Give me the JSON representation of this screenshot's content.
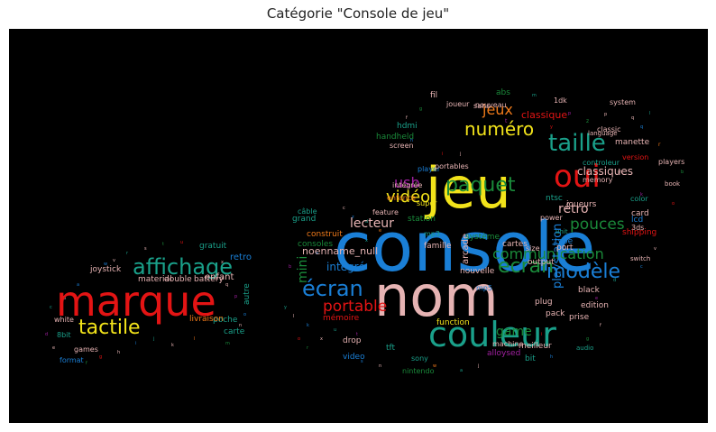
{
  "title": "Catégorie \"Console de jeu\"",
  "colors": {
    "background": "#000000",
    "title_text": "#222222"
  },
  "words": [
    {
      "text": "console",
      "color": "#1a7fd6"
    },
    {
      "text": "jeu",
      "color": "#f2e31a"
    },
    {
      "text": "nom",
      "color": "#e6b3b3"
    },
    {
      "text": "marque",
      "color": "#e31414"
    },
    {
      "text": "couleur",
      "color": "#1aa08a"
    },
    {
      "text": "oui",
      "color": "#e31414"
    },
    {
      "text": "affichage",
      "color": "#1aa08a"
    },
    {
      "text": "tactile",
      "color": "#f2e31a"
    },
    {
      "text": "taille",
      "color": "#1aa08a"
    },
    {
      "text": "écran",
      "color": "#1a7fd6"
    },
    {
      "text": "paquet",
      "color": "#1a8a3a"
    },
    {
      "text": "modèle",
      "color": "#1a7fd6"
    },
    {
      "text": "numéro",
      "color": "#f2e31a"
    },
    {
      "text": "vidéo",
      "color": "#f2e31a"
    },
    {
      "text": "ecran",
      "color": "#1a8a3a"
    },
    {
      "text": "communication",
      "color": "#1a8a3a"
    },
    {
      "text": "portable",
      "color": "#e31414"
    },
    {
      "text": "jeux",
      "color": "#f07a1a"
    },
    {
      "text": "pouces",
      "color": "#1a8a3a"
    },
    {
      "text": "usb",
      "color": "#a020a0"
    },
    {
      "text": "lecteur",
      "color": "#e6b3b3"
    },
    {
      "text": "rétro",
      "color": "#e6b3b3"
    },
    {
      "text": "mini",
      "color": "#1a8a3a"
    },
    {
      "text": "intégré",
      "color": "#1a7fd6"
    },
    {
      "text": "classiques",
      "color": "#e6b3b3"
    },
    {
      "text": "game",
      "color": "#1a8a3a"
    },
    {
      "text": "playstation",
      "color": "#1a7fd6"
    },
    {
      "text": "noenname_null",
      "color": "#e6b3b3"
    },
    {
      "text": "classique",
      "color": "#e31414"
    },
    {
      "text": "joystick",
      "color": "#e6b3b3"
    },
    {
      "text": "enfant",
      "color": "#e6b3b3"
    },
    {
      "text": "retro",
      "color": "#1a7fd6"
    },
    {
      "text": "gratuit",
      "color": "#1aa08a"
    },
    {
      "text": "poche",
      "color": "#1aa08a"
    },
    {
      "text": "carte",
      "color": "#1aa08a"
    },
    {
      "text": "autre",
      "color": "#1aa08a"
    },
    {
      "text": "double",
      "color": "#e6b3b3"
    },
    {
      "text": "battery",
      "color": "#e6b3b3"
    },
    {
      "text": "material",
      "color": "#e6b3b3"
    },
    {
      "text": "livraison",
      "color": "#f07a1a"
    },
    {
      "text": "white",
      "color": "#e6b3b3"
    },
    {
      "text": "8bit",
      "color": "#1aa08a"
    },
    {
      "text": "format",
      "color": "#1a7fd6"
    },
    {
      "text": "games",
      "color": "#e6b3b3"
    },
    {
      "text": "consoles",
      "color": "#1a8a3a"
    },
    {
      "text": "construit",
      "color": "#f07a1a"
    },
    {
      "text": "grand",
      "color": "#1aa08a"
    },
    {
      "text": "mémoire",
      "color": "#e31414"
    },
    {
      "text": "famille",
      "color": "#e6b3b3"
    },
    {
      "text": "arcade",
      "color": "#e6b3b3"
    },
    {
      "text": "cartes",
      "color": "#e6b3b3"
    },
    {
      "text": "nouvelle",
      "color": "#e6b3b3"
    },
    {
      "text": "machine",
      "color": "#e6b3b3"
    },
    {
      "text": "alloysed",
      "color": "#a020a0"
    },
    {
      "text": "bit",
      "color": "#1aa08a"
    },
    {
      "text": "meilleur",
      "color": "#e6b3b3"
    },
    {
      "text": "edition",
      "color": "#e6b3b3"
    },
    {
      "text": "prise",
      "color": "#e6b3b3"
    },
    {
      "text": "shipping",
      "color": "#e31414"
    },
    {
      "text": "card",
      "color": "#e6b3b3"
    },
    {
      "text": "lcd",
      "color": "#1a7fd6"
    },
    {
      "text": "3ds",
      "color": "#e6b3b3"
    },
    {
      "text": "color",
      "color": "#1aa08a"
    },
    {
      "text": "manette",
      "color": "#e6b3b3"
    },
    {
      "text": "système",
      "color": "#1a8a3a"
    },
    {
      "text": "joueurs",
      "color": "#e6b3b3"
    },
    {
      "text": "ntsc",
      "color": "#1aa08a"
    },
    {
      "text": "super",
      "color": "#f2e31a"
    },
    {
      "text": "station",
      "color": "#1a8a3a"
    },
    {
      "text": "mp3",
      "color": "#1aa08a"
    },
    {
      "text": "mp5",
      "color": "#1a7fd6"
    },
    {
      "text": "tft",
      "color": "#1aa08a"
    },
    {
      "text": "sony",
      "color": "#1aa08a"
    },
    {
      "text": "nintendo",
      "color": "#1a8a3a"
    },
    {
      "text": "drop",
      "color": "#e6b3b3"
    },
    {
      "text": "video",
      "color": "#1a7fd6"
    },
    {
      "text": "plug",
      "color": "#e6b3b3"
    },
    {
      "text": "pack",
      "color": "#e6b3b3"
    },
    {
      "text": "port",
      "color": "#e6b3b3"
    },
    {
      "text": "type",
      "color": "#1a7fd6"
    },
    {
      "text": "black",
      "color": "#e6b3b3"
    },
    {
      "text": "function",
      "color": "#f2e31a"
    },
    {
      "text": "output",
      "color": "#e6b3b3"
    },
    {
      "text": "size",
      "color": "#e6b3b3"
    },
    {
      "text": "power",
      "color": "#e6b3b3"
    },
    {
      "text": "unit",
      "color": "#1aa08a"
    },
    {
      "text": "fil",
      "color": "#e6b3b3"
    },
    {
      "text": "abs",
      "color": "#1a8a3a"
    },
    {
      "text": "joueur",
      "color": "#e6b3b3"
    },
    {
      "text": "sans",
      "color": "#e6b3b3"
    },
    {
      "text": "hdmi",
      "color": "#1aa08a"
    },
    {
      "text": "handheld",
      "color": "#1a8a3a"
    },
    {
      "text": "screen",
      "color": "#e6b3b3"
    },
    {
      "text": "player",
      "color": "#1a7fd6"
    },
    {
      "text": "nouveau",
      "color": "#e6b3b3"
    },
    {
      "text": "intégrée",
      "color": "#e6b3b3"
    },
    {
      "text": "enfance",
      "color": "#f07a1a"
    },
    {
      "text": "feature",
      "color": "#e6b3b3"
    },
    {
      "text": "classic",
      "color": "#e6b3b3"
    },
    {
      "text": "system",
      "color": "#e6b3b3"
    },
    {
      "text": "version",
      "color": "#e31414"
    },
    {
      "text": "controleur",
      "color": "#1aa08a"
    },
    {
      "text": "players",
      "color": "#e6b3b3"
    },
    {
      "text": "memory",
      "color": "#e6b3b3"
    },
    {
      "text": "book",
      "color": "#e6b3b3"
    },
    {
      "text": "language",
      "color": "#e6b3b3"
    },
    {
      "text": "1dk",
      "color": "#e6b3b3"
    },
    {
      "text": "portables",
      "color": "#e6b3b3"
    },
    {
      "text": "câble",
      "color": "#1aa08a"
    },
    {
      "text": "switch",
      "color": "#e6b3b3"
    },
    {
      "text": "audio",
      "color": "#1aa08a"
    }
  ]
}
